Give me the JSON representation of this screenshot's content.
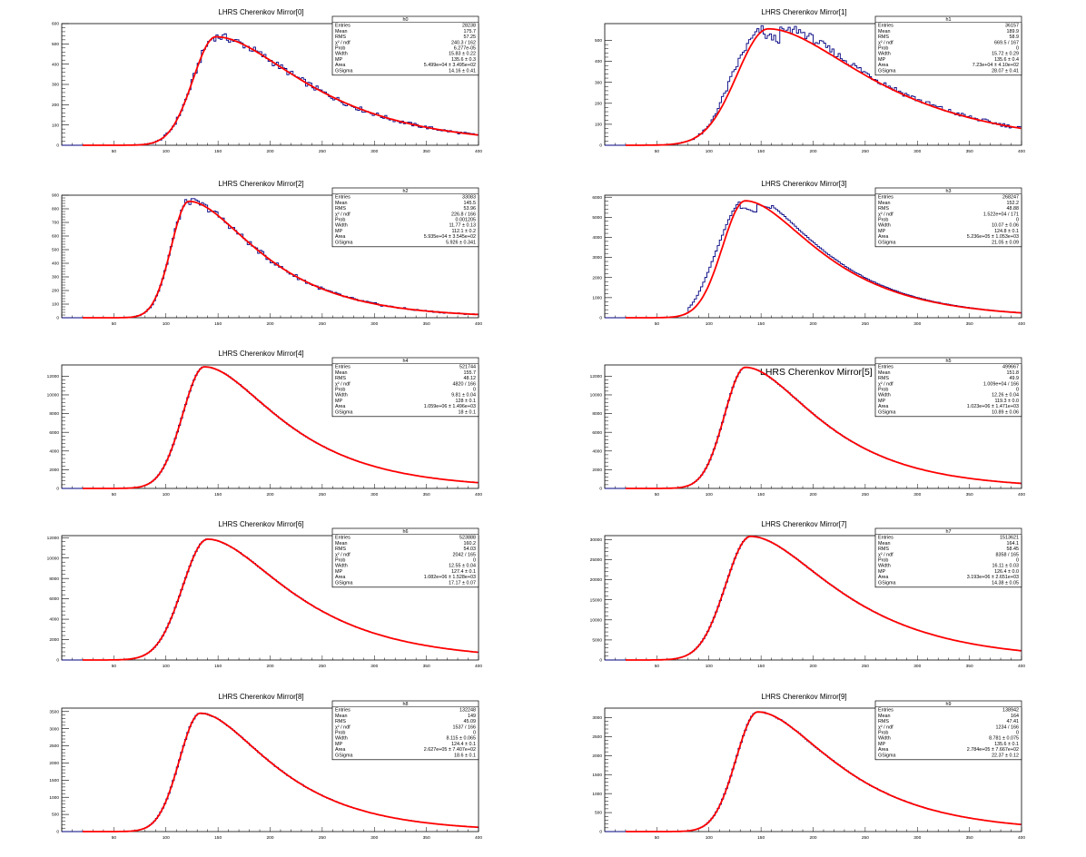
{
  "chart_data": [
    {
      "type": "bar",
      "title": "LHRS Cherenkov Mirror[0]",
      "hist": "h0",
      "xlim": [
        0,
        400
      ],
      "ylim": [
        0,
        600
      ],
      "yticks": [
        0,
        100,
        200,
        300,
        400,
        500,
        600
      ],
      "xticks": [
        50,
        100,
        150,
        200,
        250,
        300,
        350,
        400
      ],
      "peak": 535,
      "mode": 148,
      "wl": 22,
      "wr": 44,
      "bulge": 0,
      "stats": [
        [
          "Entries",
          "28238"
        ],
        [
          "Mean",
          "175.7"
        ],
        [
          "RMS",
          "57.25"
        ],
        [
          "χ² / ndf",
          "240.3 / 162"
        ],
        [
          "Prob",
          "6.277e-05"
        ],
        [
          "Width",
          "15.83 ± 0.22"
        ],
        [
          "MP",
          "135.6 ± 0.3"
        ],
        [
          "Area",
          "5.499e+04 ± 3.495e+02"
        ],
        [
          "GSigma",
          "14.16 ± 0.41"
        ]
      ]
    },
    {
      "type": "bar",
      "title": "LHRS Cherenkov Mirror[1]",
      "hist": "h1",
      "xlim": [
        0,
        400
      ],
      "ylim": [
        0,
        580
      ],
      "yticks": [
        0,
        100,
        200,
        300,
        400,
        500
      ],
      "xticks": [
        50,
        100,
        150,
        200,
        250,
        300,
        350,
        400
      ],
      "peak": 555,
      "mode": 157,
      "wl": 30,
      "wr": 50,
      "bulge": 35,
      "stats": [
        [
          "Entries",
          "36157"
        ],
        [
          "Mean",
          "189.9"
        ],
        [
          "RMS",
          "58.9"
        ],
        [
          "χ² / ndf",
          "669.5 / 167"
        ],
        [
          "Prob",
          "0"
        ],
        [
          "Width",
          "15.72 ± 0.29"
        ],
        [
          "MP",
          "135.6 ± 0.4"
        ],
        [
          "Area",
          "7.23e+04 ± 4.10e+02"
        ],
        [
          "GSigma",
          "28.07 ± 0.41"
        ]
      ]
    },
    {
      "type": "bar",
      "title": "LHRS Cherenkov Mirror[2]",
      "hist": "h2",
      "xlim": [
        0,
        400
      ],
      "ylim": [
        0,
        900
      ],
      "yticks": [
        0,
        100,
        200,
        300,
        400,
        500,
        600,
        700,
        800,
        900
      ],
      "xticks": [
        50,
        100,
        150,
        200,
        250,
        300,
        350,
        400
      ],
      "peak": 855,
      "mode": 122,
      "wl": 17,
      "wr": 34,
      "bulge": 0,
      "stats": [
        [
          "Entries",
          "33083"
        ],
        [
          "Mean",
          "145.5"
        ],
        [
          "RMS",
          "53.96"
        ],
        [
          "χ² / ndf",
          "226.8 / 166"
        ],
        [
          "Prob",
          "0.001205"
        ],
        [
          "Width",
          "11.77 ± 0.13"
        ],
        [
          "MP",
          "112.1 ± 0.2"
        ],
        [
          "Area",
          "5.935e+04 ± 3.545e+02"
        ],
        [
          "GSigma",
          "5.926 ± 0.341"
        ]
      ]
    },
    {
      "type": "bar",
      "title": "LHRS Cherenkov Mirror[3]",
      "hist": "h3",
      "xlim": [
        0,
        400
      ],
      "ylim": [
        0,
        6100
      ],
      "yticks": [
        0,
        1000,
        2000,
        3000,
        4000,
        5000,
        6000
      ],
      "xticks": [
        50,
        100,
        150,
        200,
        250,
        300,
        350,
        400
      ],
      "peak": 5820,
      "mode": 135,
      "wl": 22,
      "wr": 36,
      "bulge": 55,
      "stats": [
        [
          "Entries",
          "268247"
        ],
        [
          "Mean",
          "152.2"
        ],
        [
          "RMS",
          "48.88"
        ],
        [
          "χ² / ndf",
          "1.522e+04 / 171"
        ],
        [
          "Prob",
          "0"
        ],
        [
          "Width",
          "10.07 ± 0.06"
        ],
        [
          "MP",
          "124.8 ± 0.1"
        ],
        [
          "Area",
          "5.236e+05 ± 1.053e+03"
        ],
        [
          "GSigma",
          "21.05 ± 0.09"
        ]
      ]
    },
    {
      "type": "bar",
      "title": "LHRS Cherenkov Mirror[4]",
      "hist": "h4",
      "xlim": [
        0,
        400
      ],
      "ylim": [
        0,
        13200
      ],
      "yticks": [
        0,
        2000,
        4000,
        6000,
        8000,
        10000,
        12000
      ],
      "xticks": [
        50,
        100,
        150,
        200,
        250,
        300,
        350,
        400
      ],
      "peak": 13000,
      "mode": 137,
      "wl": 21,
      "wr": 37,
      "bulge": 0,
      "stats": [
        [
          "Entries",
          "521744"
        ],
        [
          "Mean",
          "155.7"
        ],
        [
          "RMS",
          "48.12"
        ],
        [
          "χ² / ndf",
          "4820 / 166"
        ],
        [
          "Prob",
          "0"
        ],
        [
          "Width",
          "9.81 ± 0.04"
        ],
        [
          "MP",
          "128 ± 0.1"
        ],
        [
          "Area",
          "1.059e+06 ± 1.496e+03"
        ],
        [
          "GSigma",
          "18 ± 0.1"
        ]
      ]
    },
    {
      "type": "bar",
      "title": "LHRS Cherenkov Mirror[5]",
      "hist": "h5",
      "xlim": [
        0,
        400
      ],
      "ylim": [
        0,
        13200
      ],
      "yticks": [
        0,
        2000,
        4000,
        6000,
        8000,
        10000,
        12000
      ],
      "xticks": [
        50,
        100,
        150,
        200,
        250,
        300,
        350,
        400
      ],
      "peak": 12950,
      "mode": 135,
      "wl": 20,
      "wr": 36,
      "bulge": 0,
      "bigTitle": true,
      "stats": [
        [
          "Entries",
          "499667"
        ],
        [
          "Mean",
          "151.8"
        ],
        [
          "RMS",
          "49.9"
        ],
        [
          "χ² / ndf",
          "1.009e+04 / 166"
        ],
        [
          "Prob",
          "0"
        ],
        [
          "Width",
          "12.26 ± 0.04"
        ],
        [
          "MP",
          "119.3 ± 0.0"
        ],
        [
          "Area",
          "1.023e+06 ± 1.471e+03"
        ],
        [
          "GSigma",
          "10.89 ± 0.06"
        ]
      ]
    },
    {
      "type": "bar",
      "title": "LHRS Cherenkov Mirror[6]",
      "hist": "h6",
      "xlim": [
        0,
        400
      ],
      "ylim": [
        0,
        12200
      ],
      "yticks": [
        0,
        2000,
        4000,
        6000,
        8000,
        10000,
        12000
      ],
      "xticks": [
        50,
        100,
        150,
        200,
        250,
        300,
        350,
        400
      ],
      "peak": 11850,
      "mode": 140,
      "wl": 24,
      "wr": 40,
      "bulge": 0,
      "stats": [
        [
          "Entries",
          "523888"
        ],
        [
          "Mean",
          "160.2"
        ],
        [
          "RMS",
          "54.03"
        ],
        [
          "χ² / ndf",
          "2042 / 165"
        ],
        [
          "Prob",
          "0"
        ],
        [
          "Width",
          "12.55 ± 0.04"
        ],
        [
          "MP",
          "127.4 ± 0.1"
        ],
        [
          "Area",
          "1.082e+06 ± 1.528e+03"
        ],
        [
          "GSigma",
          "17.17 ± 0.07"
        ]
      ]
    },
    {
      "type": "bar",
      "title": "LHRS Cherenkov Mirror[7]",
      "hist": "h7",
      "xlim": [
        0,
        400
      ],
      "ylim": [
        0,
        31000
      ],
      "yticks": [
        0,
        5000,
        10000,
        15000,
        20000,
        25000,
        30000
      ],
      "xticks": [
        50,
        100,
        150,
        200,
        250,
        300,
        350,
        400
      ],
      "peak": 30800,
      "mode": 140,
      "wl": 24,
      "wr": 42,
      "bulge": 0,
      "stats": [
        [
          "Entries",
          "1513621"
        ],
        [
          "Mean",
          "164.1"
        ],
        [
          "RMS",
          "58.45"
        ],
        [
          "χ² / ndf",
          "8358 / 165"
        ],
        [
          "Prob",
          "0"
        ],
        [
          "Width",
          "16.11 ± 0.03"
        ],
        [
          "MP",
          "126.4 ± 0.0"
        ],
        [
          "Area",
          "3.193e+06 ± 2.651e+03"
        ],
        [
          "GSigma",
          "14.38 ± 0.05"
        ]
      ]
    },
    {
      "type": "bar",
      "title": "LHRS Cherenkov Mirror[8]",
      "hist": "h8",
      "xlim": [
        0,
        400
      ],
      "ylim": [
        0,
        3600
      ],
      "yticks": [
        0,
        500,
        1000,
        1500,
        2000,
        2500,
        3000,
        3500
      ],
      "xticks": [
        50,
        100,
        150,
        200,
        250,
        300,
        350,
        400
      ],
      "peak": 3450,
      "mode": 133,
      "wl": 20,
      "wr": 35,
      "bulge": 0,
      "stats": [
        [
          "Entries",
          "132248"
        ],
        [
          "Mean",
          "149"
        ],
        [
          "RMS",
          "45.09"
        ],
        [
          "χ² / ndf",
          "1537 / 166"
        ],
        [
          "Prob",
          "0"
        ],
        [
          "Width",
          "8.115 ± 0.065"
        ],
        [
          "MP",
          "124.4 ± 0.1"
        ],
        [
          "Area",
          "2.627e+05 ± 7.407e+02"
        ],
        [
          "GSigma",
          "18.6 ± 0.1"
        ]
      ]
    },
    {
      "type": "bar",
      "title": "LHRS Cherenkov Mirror[9]",
      "hist": "h9",
      "xlim": [
        0,
        400
      ],
      "ylim": [
        0,
        3250
      ],
      "yticks": [
        0,
        500,
        1000,
        1500,
        2000,
        2500,
        3000
      ],
      "xticks": [
        50,
        100,
        150,
        200,
        250,
        300,
        350,
        400
      ],
      "peak": 3150,
      "mode": 147,
      "wl": 21,
      "wr": 38,
      "bulge": 0,
      "stats": [
        [
          "Entries",
          "138942"
        ],
        [
          "Mean",
          "164"
        ],
        [
          "RMS",
          "47.41"
        ],
        [
          "χ² / ndf",
          "1234 / 166"
        ],
        [
          "Prob",
          "0"
        ],
        [
          "Width",
          "8.781 ± 0.075"
        ],
        [
          "MP",
          "135.6 ± 0.1"
        ],
        [
          "Area",
          "2.784e+05 ± 7.667e+02"
        ],
        [
          "GSigma",
          "22.37 ± 0.12"
        ]
      ]
    }
  ],
  "colors": {
    "histogram": "#000080",
    "fit": "#ff0000",
    "axis": "#000000",
    "background": "#ffffff"
  }
}
